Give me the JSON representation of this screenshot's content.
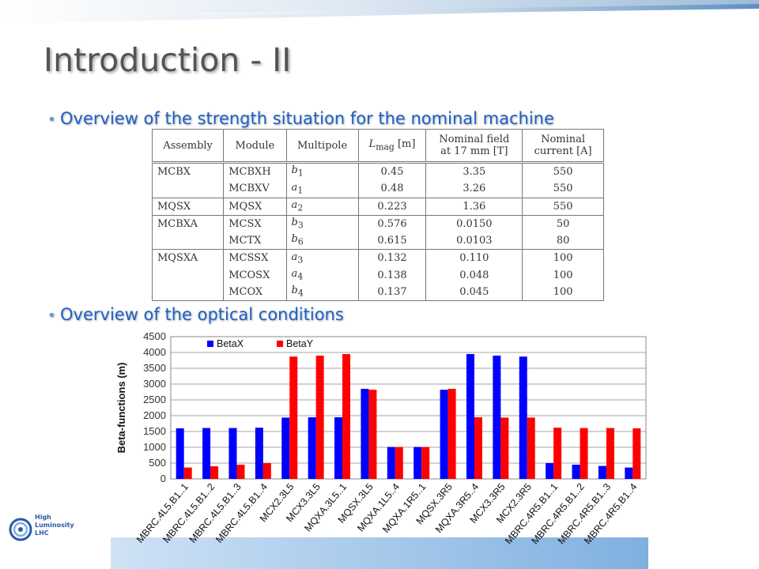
{
  "slide": {
    "title": "Introduction - II",
    "bullet1": "Overview of the strength situation for the nominal machine",
    "bullet2": "Overview of the optical conditions"
  },
  "table": {
    "headers": [
      "Assembly",
      "Module",
      "Multipole",
      "L_mag [m]",
      "Nominal field at 17 mm [T]",
      "Nominal current [A]"
    ],
    "header_lines": {
      "assembly": "Assembly",
      "module": "Module",
      "multipole": "Multipole",
      "lmag_l": "L",
      "lmag_sub": "mag",
      "lmag_unit": "[m]",
      "field_1": "Nominal field",
      "field_2": "at 17 mm [T]",
      "current_1": "Nominal",
      "current_2": "current [A]"
    },
    "rows": [
      {
        "assembly": "MCBX",
        "module": "MCBXH",
        "mp": "b",
        "mpi": "1",
        "lmag": "0.45",
        "field": "3.35",
        "current": "550"
      },
      {
        "assembly": "",
        "module": "MCBXV",
        "mp": "a",
        "mpi": "1",
        "lmag": "0.48",
        "field": "3.26",
        "current": "550"
      },
      {
        "assembly": "MQSX",
        "module": "MQSX",
        "mp": "a",
        "mpi": "2",
        "lmag": "0.223",
        "field": "1.36",
        "current": "550"
      },
      {
        "assembly": "MCBXA",
        "module": "MCSX",
        "mp": "b",
        "mpi": "3",
        "lmag": "0.576",
        "field": "0.0150",
        "current": "50"
      },
      {
        "assembly": "",
        "module": "MCTX",
        "mp": "b",
        "mpi": "6",
        "lmag": "0.615",
        "field": "0.0103",
        "current": "80"
      },
      {
        "assembly": "MQSXA",
        "module": "MCSSX",
        "mp": "a",
        "mpi": "3",
        "lmag": "0.132",
        "field": "0.110",
        "current": "100"
      },
      {
        "assembly": "",
        "module": "MCOSX",
        "mp": "a",
        "mpi": "4",
        "lmag": "0.138",
        "field": "0.048",
        "current": "100"
      },
      {
        "assembly": "",
        "module": "MCOX",
        "mp": "b",
        "mpi": "4",
        "lmag": "0.137",
        "field": "0.045",
        "current": "100"
      }
    ]
  },
  "chart_data": {
    "type": "bar",
    "ylabel": "Beta-functions (m)",
    "ylim": [
      0,
      4500
    ],
    "yticks": [
      0,
      500,
      1000,
      1500,
      2000,
      2500,
      3000,
      3500,
      4000,
      4500
    ],
    "grid": true,
    "legend": "top-left",
    "categories": [
      "MBRC.4L5.B1..1",
      "MBRC.4L5.B1..2",
      "MBRC.4L5.B1..3",
      "MBRC.4L5.B1..4",
      "MCX2.3L5",
      "MCX3.3L5",
      "MQXA.3L5..1",
      "MQSX.3L5",
      "MQXA.1L5..4",
      "MQXA.1R5..1",
      "MQSX.3R5",
      "MQXA.3R5..4",
      "MCX3.3R5",
      "MCX2.3R5",
      "MBRC.4R5.B1..1",
      "MBRC.4R5.B1..2",
      "MBRC.4R5.B1..3",
      "MBRC.4R5.B1..4"
    ],
    "series": [
      {
        "name": "BetaX",
        "color": "#0000ff",
        "values": [
          1600,
          1610,
          1610,
          1620,
          1940,
          1950,
          1950,
          2850,
          1010,
          1010,
          2820,
          3950,
          3900,
          3870,
          500,
          450,
          410,
          360
        ]
      },
      {
        "name": "BetaY",
        "color": "#ff0000",
        "values": [
          360,
          400,
          450,
          500,
          3870,
          3900,
          3950,
          2820,
          1010,
          1010,
          2850,
          1950,
          1940,
          1940,
          1620,
          1610,
          1610,
          1600
        ]
      }
    ]
  },
  "logo": {
    "line1": "High",
    "line2": "Luminosity",
    "line3": "LHC"
  }
}
